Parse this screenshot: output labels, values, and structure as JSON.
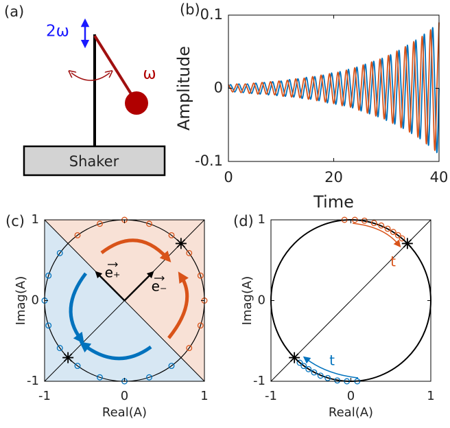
{
  "diagram": {
    "panel_label": "(a)",
    "labels": {
      "vertical": "2ω",
      "pendulum": "ω",
      "base": "Shaker"
    }
  },
  "chart_data": [
    {
      "type": "line",
      "panel_label": "(b)",
      "x_label": "Time",
      "y_label": "Amplitude",
      "xlim": [
        0,
        40
      ],
      "ylim": [
        -0.1,
        0.1
      ],
      "xticks": [
        0,
        20,
        40
      ],
      "yticks": [
        -0.1,
        0,
        0.1
      ],
      "grid": false,
      "x": [
        0,
        0.4,
        0.8,
        1.2,
        1.6,
        2,
        2.4,
        2.8,
        3.2,
        3.6,
        4,
        4.4,
        4.8,
        5.2,
        5.6,
        6,
        6.4,
        6.8,
        7.2,
        7.6,
        8,
        8.4,
        8.8,
        9.2,
        9.6,
        10,
        10.4,
        10.8,
        11.2,
        11.6,
        12,
        12.4,
        12.8,
        13.2,
        13.6,
        14,
        14.4,
        14.8,
        15.2,
        15.6,
        16,
        16.4,
        16.8,
        17.2,
        17.6,
        18,
        18.4,
        18.8,
        19.2,
        19.6,
        20,
        20.4,
        20.8,
        21.2,
        21.6,
        22,
        22.4,
        22.8,
        23.2,
        23.6,
        24,
        24.4,
        24.8,
        25.2,
        25.6,
        26,
        26.4,
        26.8,
        27.2,
        27.6,
        28,
        28.4,
        28.8,
        29.2,
        29.6,
        30,
        30.4,
        30.8,
        31.2,
        31.6,
        32,
        32.4,
        32.8,
        33.2,
        33.6,
        34,
        34.4,
        34.8,
        35.2,
        35.6,
        36,
        36.4,
        36.8,
        37.2,
        37.6,
        38,
        38.4,
        38.8,
        39.2,
        39.6,
        40
      ],
      "series": [
        {
          "color": "#0072bd",
          "values": [
            0,
            0.005,
            0,
            -0.005,
            0,
            0.006,
            0,
            -0.006,
            0,
            0.006,
            0,
            -0.007,
            0,
            0.007,
            0,
            -0.008,
            0,
            0.008,
            0,
            -0.009,
            0,
            0.009,
            0,
            -0.01,
            0,
            0.01,
            0,
            -0.011,
            0,
            0.012,
            0,
            -0.012,
            0,
            0.013,
            0,
            -0.014,
            0,
            0.015,
            0,
            -0.015,
            0,
            0.016,
            0,
            -0.017,
            0,
            0.018,
            0,
            -0.02,
            0,
            0.021,
            0,
            -0.022,
            0,
            0.023,
            0,
            -0.024,
            0,
            0.026,
            0,
            -0.027,
            0,
            0.029,
            0,
            -0.031,
            0,
            0.033,
            0,
            -0.035,
            0,
            0.037,
            0,
            -0.039,
            0,
            0.041,
            0,
            -0.044,
            0,
            0.046,
            0,
            -0.049,
            0,
            0.052,
            0,
            -0.055,
            0,
            0.059,
            0,
            -0.062,
            0,
            0.066,
            0,
            -0.069,
            0,
            0.074,
            0,
            -0.078,
            0,
            0.083,
            0,
            -0.088,
            0
          ]
        },
        {
          "color": "#d95319",
          "values": [
            0.005,
            0,
            -0.005,
            0,
            0.006,
            0,
            -0.006,
            0,
            0.006,
            0,
            -0.007,
            0,
            0.007,
            0,
            -0.008,
            0,
            0.008,
            0,
            -0.008,
            0,
            0.009,
            0,
            -0.009,
            0,
            0.01,
            0,
            -0.011,
            0,
            0.011,
            0,
            -0.012,
            0,
            0.013,
            0,
            -0.013,
            0,
            0.014,
            0,
            -0.015,
            0,
            0.016,
            0,
            -0.017,
            0,
            0.018,
            0,
            -0.019,
            0,
            0.02,
            0,
            -0.021,
            0,
            0.022,
            0,
            -0.024,
            0,
            0.025,
            0,
            -0.026,
            0,
            0.028,
            0,
            -0.03,
            0,
            0.032,
            0,
            -0.034,
            0,
            0.036,
            0,
            -0.038,
            0,
            0.04,
            0,
            -0.042,
            0,
            0.045,
            0,
            -0.048,
            0,
            0.051,
            0,
            -0.054,
            0,
            0.057,
            0,
            -0.06,
            0,
            0.064,
            0,
            -0.067,
            0,
            0.071,
            0,
            -0.076,
            0,
            0.08,
            0,
            -0.085,
            0,
            0.09
          ]
        }
      ]
    },
    {
      "type": "scatter",
      "panel_label": "(c)",
      "x_label": "Real(A)",
      "y_label": "Imag(A)",
      "xlim": [
        -1,
        1
      ],
      "ylim": [
        -1,
        1
      ],
      "xticks": [
        -1,
        0,
        1
      ],
      "yticks": [
        -1,
        0,
        1
      ],
      "grid": false,
      "unit_circle": true,
      "shading": {
        "upper": "#f8e1d6",
        "lower": "#d7e7f3"
      },
      "annotations": [
        "e₊",
        "e₋"
      ],
      "series": [
        {
          "color": "#d95319",
          "marker": "circle",
          "x": [
            0.809,
            0.951,
            1,
            0.951,
            0.809,
            0.588,
            0.309,
            0,
            -0.309,
            -0.588
          ],
          "values": [
            -0.588,
            -0.309,
            0,
            0.309,
            0.588,
            0.809,
            0.951,
            1,
            0.951,
            0.809
          ]
        },
        {
          "color": "#0072bd",
          "marker": "circle",
          "x": [
            -0.809,
            -0.951,
            -1,
            -0.951,
            -0.809,
            -0.588,
            -0.309,
            0,
            0.309,
            0.588
          ],
          "values": [
            0.588,
            0.309,
            0,
            -0.309,
            -0.588,
            -0.809,
            -0.951,
            -1,
            -0.951,
            -0.809
          ]
        },
        {
          "color": "#000000",
          "marker": "star",
          "x": [
            0.707,
            -0.707
          ],
          "values": [
            0.707,
            -0.707
          ]
        }
      ]
    },
    {
      "type": "scatter",
      "panel_label": "(d)",
      "x_label": "Real(A)",
      "y_label": "Imag(A)",
      "xlim": [
        -1,
        1
      ],
      "ylim": [
        -1,
        1
      ],
      "xticks": [
        -1,
        0,
        1
      ],
      "yticks": [
        -1,
        0,
        1
      ],
      "grid": false,
      "unit_circle": true,
      "annotations": [
        "t",
        "t"
      ],
      "series": [
        {
          "color": "#d95319",
          "marker": "circle",
          "x": [
            -0.08,
            0.05,
            0.17,
            0.29,
            0.38,
            0.46,
            0.53,
            0.59,
            0.64
          ],
          "values": [
            1,
            1,
            0.99,
            0.96,
            0.93,
            0.89,
            0.85,
            0.81,
            0.77
          ]
        },
        {
          "color": "#0072bd",
          "marker": "circle",
          "x": [
            0.08,
            -0.05,
            -0.17,
            -0.29,
            -0.38,
            -0.46,
            -0.53,
            -0.59,
            -0.64
          ],
          "values": [
            -1,
            -1,
            -0.99,
            -0.96,
            -0.93,
            -0.89,
            -0.85,
            -0.81,
            -0.77
          ]
        },
        {
          "color": "#000000",
          "marker": "star",
          "x": [
            0.707,
            -0.707
          ],
          "values": [
            0.707,
            -0.707
          ]
        }
      ]
    }
  ]
}
